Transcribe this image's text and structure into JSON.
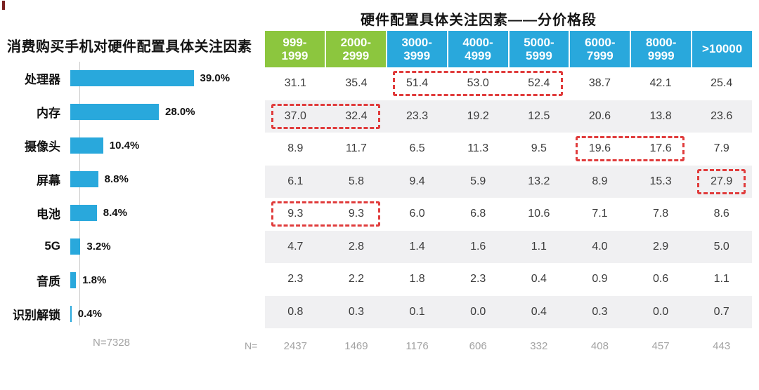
{
  "page": {
    "background": "#ffffff"
  },
  "colors": {
    "bar_blue": "#29a8dc",
    "header_blue": "#29a8dc",
    "header_green": "#8cc63e",
    "highlight_red": "#e03c3c",
    "stripe_gray": "#f0f0f2",
    "axis_gray": "#c9c9c9",
    "muted_text": "#a3a3a3",
    "table_text": "#3c3c3c",
    "corner_mark_red": "#7a2020"
  },
  "left_chart": {
    "title": "消费购买手机对硬件配置具体关注因素",
    "categories": [
      "处理器",
      "内存",
      "摄像头",
      "屏幕",
      "电池",
      "5G",
      "音质",
      "识别解锁"
    ],
    "values": [
      39.0,
      28.0,
      10.4,
      8.8,
      8.4,
      3.2,
      1.8,
      0.4
    ],
    "value_labels": [
      "39.0%",
      "28.0%",
      "10.4%",
      "8.8%",
      "8.4%",
      "3.2%",
      "1.8%",
      "0.4%"
    ],
    "sample_label": "N=7328"
  },
  "table": {
    "title": "硬件配置具体关注因素——分价格段",
    "header": [
      [
        "999-",
        "1999"
      ],
      [
        "2000-",
        "2999"
      ],
      [
        "3000-",
        "3999"
      ],
      [
        "4000-",
        "4999"
      ],
      [
        "5000-",
        "5999"
      ],
      [
        "6000-",
        "7999"
      ],
      [
        "8000-",
        "9999"
      ],
      [
        ">10000"
      ]
    ],
    "green_header_count": 2,
    "rows": [
      [
        "31.1",
        "35.4",
        "51.4",
        "53.0",
        "52.4",
        "38.7",
        "42.1",
        "25.4"
      ],
      [
        "37.0",
        "32.4",
        "23.3",
        "19.2",
        "12.5",
        "20.6",
        "13.8",
        "23.6"
      ],
      [
        "8.9",
        "11.7",
        "6.5",
        "11.3",
        "9.5",
        "19.6",
        "17.6",
        "7.9"
      ],
      [
        "6.1",
        "5.8",
        "9.4",
        "5.9",
        "13.2",
        "8.9",
        "15.3",
        "27.9"
      ],
      [
        "9.3",
        "9.3",
        "6.0",
        "6.8",
        "10.6",
        "7.1",
        "7.8",
        "8.6"
      ],
      [
        "4.7",
        "2.8",
        "1.4",
        "1.6",
        "1.1",
        "4.0",
        "2.9",
        "5.0"
      ],
      [
        "2.3",
        "2.2",
        "1.8",
        "2.3",
        "0.4",
        "0.9",
        "0.6",
        "1.1"
      ],
      [
        "0.8",
        "0.3",
        "0.1",
        "0.0",
        "0.4",
        "0.3",
        "0.0",
        "0.7"
      ]
    ],
    "highlights": [
      {
        "row": 0,
        "col_start": 2,
        "col_end": 4
      },
      {
        "row": 1,
        "col_start": 0,
        "col_end": 1
      },
      {
        "row": 2,
        "col_start": 5,
        "col_end": 6
      },
      {
        "row": 3,
        "col_start": 7,
        "col_end": 7
      },
      {
        "row": 4,
        "col_start": 0,
        "col_end": 1
      }
    ],
    "footer_label": "N=",
    "footer_values": [
      "2437",
      "1469",
      "1176",
      "606",
      "332",
      "408",
      "457",
      "443"
    ]
  },
  "chart_data": [
    {
      "type": "bar",
      "orientation": "horizontal",
      "title": "消费购买手机对硬件配置具体关注因素",
      "categories": [
        "处理器",
        "内存",
        "摄像头",
        "屏幕",
        "电池",
        "5G",
        "音质",
        "识别解锁"
      ],
      "values": [
        39.0,
        28.0,
        10.4,
        8.8,
        8.4,
        3.2,
        1.8,
        0.4
      ],
      "unit": "percent",
      "xlim": [
        0,
        40
      ],
      "grid": false,
      "annotations": [
        "N=7328"
      ],
      "bar_color": "#29a8dc"
    },
    {
      "type": "table",
      "title": "硬件配置具体关注因素——分价格段",
      "columns": [
        "999-1999",
        "2000-2999",
        "3000-3999",
        "4000-4999",
        "5000-5999",
        "6000-7999",
        "8000-9999",
        ">10000"
      ],
      "row_labels": [
        "处理器",
        "内存",
        "摄像头",
        "屏幕",
        "电池",
        "5G",
        "音质",
        "识别解锁"
      ],
      "rows": [
        [
          31.1,
          35.4,
          51.4,
          53.0,
          52.4,
          38.7,
          42.1,
          25.4
        ],
        [
          37.0,
          32.4,
          23.3,
          19.2,
          12.5,
          20.6,
          13.8,
          23.6
        ],
        [
          8.9,
          11.7,
          6.5,
          11.3,
          9.5,
          19.6,
          17.6,
          7.9
        ],
        [
          6.1,
          5.8,
          9.4,
          5.9,
          13.2,
          8.9,
          15.3,
          27.9
        ],
        [
          9.3,
          9.3,
          6.0,
          6.8,
          10.6,
          7.1,
          7.8,
          8.6
        ],
        [
          4.7,
          2.8,
          1.4,
          1.6,
          1.1,
          4.0,
          2.9,
          5.0
        ],
        [
          2.3,
          2.2,
          1.8,
          2.3,
          0.4,
          0.9,
          0.6,
          1.1
        ],
        [
          0.8,
          0.3,
          0.1,
          0.0,
          0.4,
          0.3,
          0.0,
          0.7
        ]
      ],
      "footer": {
        "label": "N=",
        "values": [
          2437,
          1469,
          1176,
          606,
          332,
          408,
          457,
          443
        ]
      },
      "highlighted_cells_note": "red dashed boxes: 处理器@3000-5999, 内存@999-2999, 摄像头@6000-9999, 屏幕@>10000, 电池@999-2999"
    }
  ]
}
